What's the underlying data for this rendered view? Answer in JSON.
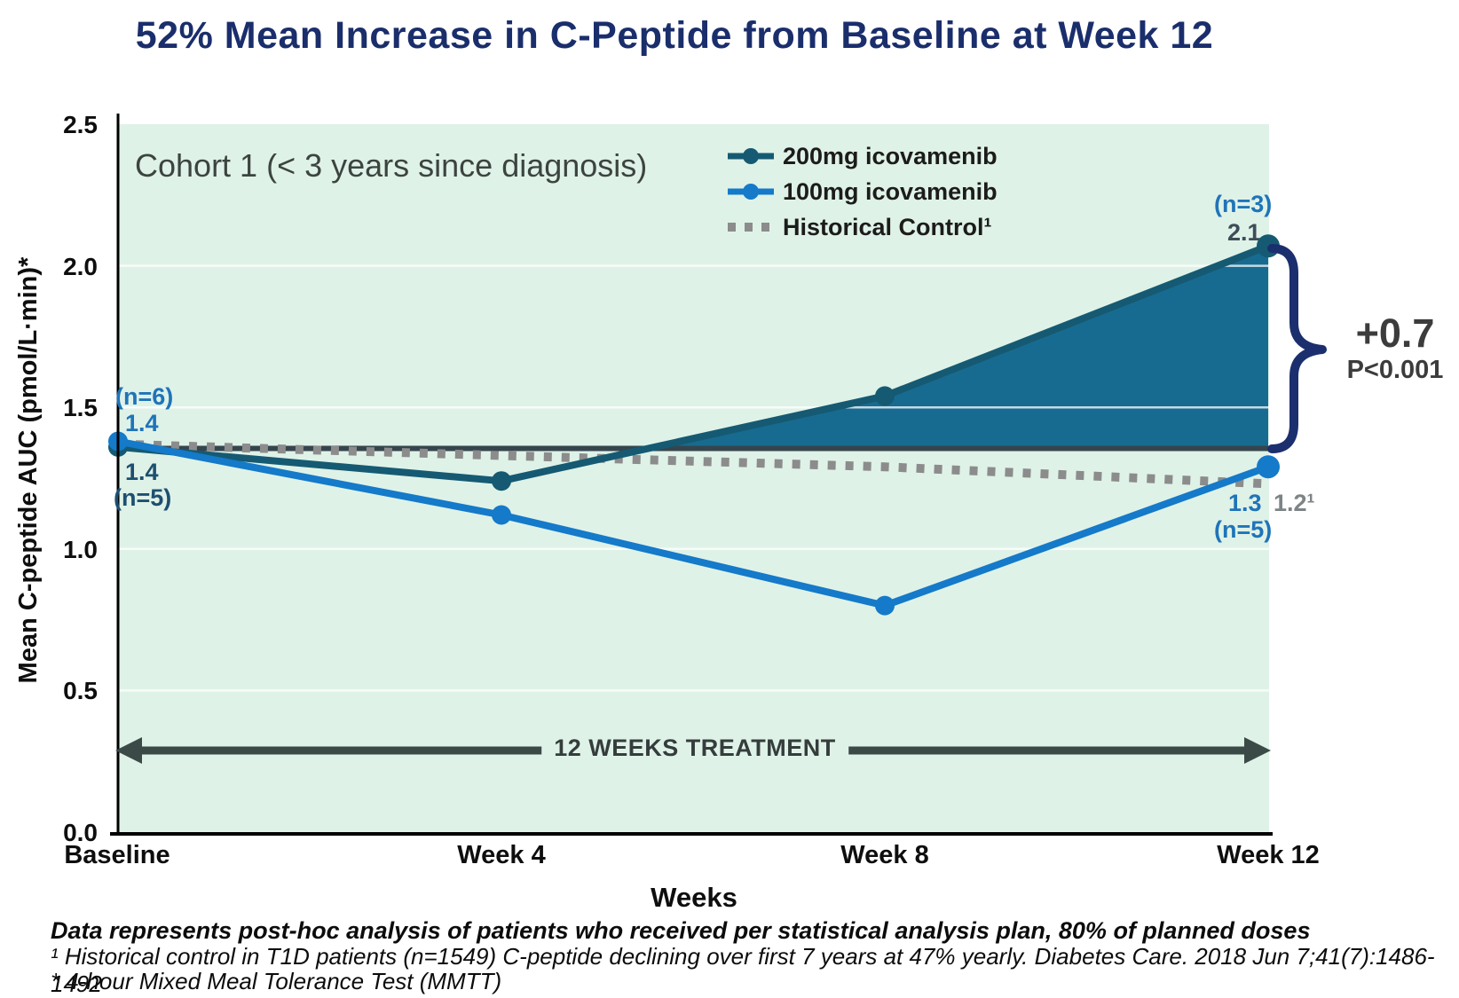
{
  "title": "52% Mean Increase in C-Peptide from Baseline at Week 12",
  "chart_data": {
    "type": "line",
    "cohort_label": "Cohort 1 (< 3 years since diagnosis)",
    "x": [
      0,
      4,
      8,
      12
    ],
    "x_tick_labels": [
      "Baseline",
      "Week 4",
      "Week 8",
      "Week 12"
    ],
    "xlabel": "Weeks",
    "ylabel": "Mean C-peptide AUC (pmol/L·min)*",
    "ylim": [
      0,
      2.5
    ],
    "ytick_labels": [
      "0.0",
      "0.5",
      "1.0",
      "1.5",
      "2.0",
      "2.5"
    ],
    "plot_bg": "#dff2e8",
    "grid": "on",
    "legend_position": "top-center-inside",
    "series": [
      {
        "name": "200mg icovamenib",
        "color": "#155a72",
        "style": "solid",
        "values": [
          1.36,
          1.24,
          1.54,
          2.07
        ]
      },
      {
        "name": "100mg icovamenib",
        "color": "#147ac9",
        "style": "solid",
        "values": [
          1.38,
          1.12,
          0.8,
          1.29
        ]
      },
      {
        "name": "Historical Control¹",
        "color": "#8c8c8c",
        "style": "dashed",
        "values": [
          1.37,
          1.33,
          1.29,
          1.23
        ]
      }
    ],
    "reference_line": {
      "value": 1.355,
      "color": "#36454d"
    },
    "fill_between": {
      "series": "200mg icovamenib",
      "baseline": 1.355,
      "color": "#186b90"
    },
    "brace_color": "#1b2f6e",
    "arrow_color": "#3c4a47",
    "annotations": {
      "baseline_100_n": "(n=6)",
      "baseline_100_value": "1.4",
      "baseline_200_value": "1.4",
      "baseline_200_n": "(n=5)",
      "week12_200_n": "(n=3)",
      "week12_200_value": "2.1",
      "week12_100_value": "1.3",
      "week12_100_n": "(n=5)",
      "week12_control_value": "1.2¹"
    },
    "difference_callout": {
      "delta": "+0.7",
      "pvalue": "P<0.001"
    },
    "treatment_arrow_label": "12 WEEKS TREATMENT"
  },
  "footnotes": {
    "line1": "Data represents post-hoc analysis of patients who received per statistical analysis plan, 80% of planned doses",
    "line2": "¹ Historical control in T1D patients (n=1549) C-peptide declining over first 7 years at 47% yearly. Diabetes Care. 2018 Jun 7;41(7):1486-1492",
    "line3": "* 4-hour Mixed Meal Tolerance Test (MMTT)"
  }
}
